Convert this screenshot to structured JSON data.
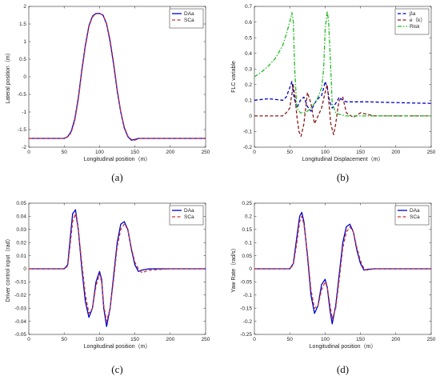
{
  "chart_data": [
    {
      "type": "line",
      "panel_label": "(a)",
      "xlabel": "Longitudinal position（m）",
      "ylabel": "Lateral position（m）",
      "xlim": [
        0,
        250
      ],
      "ylim": [
        -2,
        2
      ],
      "xticks": [
        "0",
        "50",
        "100",
        "150",
        "200",
        "250"
      ],
      "yticks": [
        "-2",
        "-1.5",
        "-1",
        "-0.5",
        "0",
        "0.5",
        "1",
        "1.5",
        "2"
      ],
      "legend_position": "top-right",
      "series": [
        {
          "name": "DAa",
          "color": "#0000cc",
          "dash": "solid",
          "x": [
            0,
            50,
            55,
            60,
            65,
            70,
            75,
            80,
            85,
            90,
            95,
            100,
            105,
            110,
            115,
            120,
            125,
            130,
            135,
            140,
            145,
            150,
            155,
            160,
            170,
            200,
            250
          ],
          "y": [
            -1.75,
            -1.75,
            -1.7,
            -1.55,
            -1.2,
            -0.6,
            0.2,
            0.9,
            1.45,
            1.72,
            1.8,
            1.8,
            1.75,
            1.5,
            1.0,
            0.35,
            -0.4,
            -1.0,
            -1.45,
            -1.7,
            -1.8,
            -1.78,
            -1.75,
            -1.75,
            -1.75,
            -1.75,
            -1.75
          ]
        },
        {
          "name": "SCa",
          "color": "#cc3333",
          "dash": "dashed",
          "x": [
            0,
            50,
            55,
            60,
            65,
            70,
            75,
            80,
            85,
            90,
            95,
            100,
            105,
            110,
            115,
            120,
            125,
            130,
            135,
            140,
            145,
            150,
            155,
            160,
            170,
            200,
            250
          ],
          "y": [
            -1.75,
            -1.75,
            -1.71,
            -1.58,
            -1.25,
            -0.65,
            0.15,
            0.85,
            1.42,
            1.7,
            1.79,
            1.8,
            1.76,
            1.52,
            1.05,
            0.4,
            -0.35,
            -0.98,
            -1.42,
            -1.68,
            -1.78,
            -1.8,
            -1.76,
            -1.75,
            -1.75,
            -1.75,
            -1.75
          ]
        }
      ]
    },
    {
      "type": "line",
      "panel_label": "(b)",
      "xlabel": "Longitudinal Displacement（m）",
      "ylabel": "FLC variable",
      "xlim": [
        0,
        250
      ],
      "ylim": [
        -0.2,
        0.7
      ],
      "xticks": [
        "0",
        "50",
        "100",
        "150",
        "200",
        "250"
      ],
      "yticks": [
        "-0.2",
        "-0.1",
        "0",
        "0.1",
        "0.2",
        "0.3",
        "0.4",
        "0.5",
        "0.6",
        "0.7"
      ],
      "legend_position": "top-right",
      "series": [
        {
          "name": "βa",
          "color": "#0000cc",
          "dash": "dashed",
          "x": [
            0,
            20,
            40,
            45,
            50,
            53,
            56,
            60,
            65,
            70,
            75,
            80,
            85,
            90,
            95,
            98,
            100,
            103,
            106,
            110,
            115,
            120,
            125,
            130,
            140,
            160,
            200,
            250
          ],
          "y": [
            0.1,
            0.11,
            0.1,
            0.12,
            0.18,
            0.22,
            0.12,
            0.05,
            0.1,
            0.12,
            0.06,
            0.03,
            0.08,
            0.11,
            0.13,
            0.18,
            0.22,
            0.18,
            0.1,
            0.05,
            0.08,
            0.12,
            0.1,
            0.09,
            0.09,
            0.09,
            0.085,
            0.08
          ]
        },
        {
          "name": "e（k）",
          "color": "#8b1a1a",
          "dash": "dashed",
          "x": [
            0,
            30,
            40,
            45,
            50,
            55,
            58,
            60,
            63,
            66,
            70,
            75,
            80,
            85,
            90,
            95,
            100,
            103,
            105,
            108,
            112,
            115,
            118,
            120,
            125,
            130,
            140,
            150,
            170,
            250
          ],
          "y": [
            0,
            0,
            0,
            0.02,
            0.05,
            0.2,
            0.1,
            0,
            -0.1,
            -0.13,
            -0.05,
            0.15,
            0.08,
            -0.05,
            0,
            0.05,
            0.15,
            0.2,
            0.1,
            -0.05,
            -0.12,
            -0.05,
            0.05,
            0.1,
            0.12,
            0.02,
            -0.01,
            0.02,
            0,
            0
          ]
        },
        {
          "name": "Risk",
          "color": "#22bb22",
          "dash": "dashdot",
          "x": [
            0,
            10,
            20,
            30,
            40,
            45,
            50,
            53,
            55,
            57,
            60,
            65,
            70,
            75,
            80,
            85,
            90,
            95,
            98,
            100,
            103,
            105,
            108,
            110,
            115,
            120,
            130,
            140,
            150,
            170,
            200,
            250
          ],
          "y": [
            0.25,
            0.28,
            0.32,
            0.37,
            0.45,
            0.52,
            0.6,
            0.66,
            0.6,
            0.3,
            0.05,
            0.02,
            0.02,
            0.03,
            0.05,
            0.08,
            0.12,
            0.18,
            0.3,
            0.55,
            0.67,
            0.6,
            0.3,
            0.08,
            0.02,
            0.01,
            0,
            0,
            0,
            0,
            0,
            0
          ]
        }
      ]
    },
    {
      "type": "line",
      "panel_label": "(c)",
      "xlabel": "Longitudinal position（m）",
      "ylabel": "Driver control input（rad）",
      "xlim": [
        0,
        250
      ],
      "ylim": [
        -0.05,
        0.05
      ],
      "xticks": [
        "0",
        "50",
        "100",
        "150",
        "200",
        "250"
      ],
      "yticks": [
        "-0.05",
        "-0.04",
        "-0.03",
        "-0.02",
        "-0.01",
        "0",
        "0.01",
        "0.02",
        "0.03",
        "0.04",
        "0.05"
      ],
      "legend_position": "top-right",
      "series": [
        {
          "name": "DAa",
          "color": "#0000cc",
          "dash": "solid",
          "x": [
            0,
            50,
            55,
            58,
            62,
            66,
            70,
            75,
            80,
            85,
            90,
            95,
            100,
            103,
            106,
            110,
            115,
            120,
            125,
            130,
            135,
            140,
            145,
            150,
            155,
            160,
            170,
            200,
            250
          ],
          "y": [
            0,
            0,
            0.003,
            0.02,
            0.042,
            0.045,
            0.03,
            0.0,
            -0.025,
            -0.037,
            -0.03,
            -0.01,
            -0.002,
            -0.008,
            -0.03,
            -0.044,
            -0.03,
            -0.005,
            0.02,
            0.034,
            0.036,
            0.03,
            0.015,
            0.003,
            -0.002,
            -0.001,
            0,
            0,
            0
          ]
        },
        {
          "name": "SCa",
          "color": "#cc3333",
          "dash": "dashed",
          "x": [
            0,
            50,
            55,
            58,
            62,
            66,
            70,
            75,
            80,
            85,
            90,
            95,
            100,
            103,
            106,
            110,
            115,
            120,
            125,
            130,
            135,
            140,
            145,
            150,
            155,
            160,
            170,
            200,
            250
          ],
          "y": [
            0,
            0,
            0.002,
            0.016,
            0.036,
            0.042,
            0.03,
            0.004,
            -0.02,
            -0.034,
            -0.03,
            -0.013,
            -0.004,
            -0.01,
            -0.028,
            -0.04,
            -0.03,
            -0.008,
            0.017,
            0.03,
            0.034,
            0.03,
            0.016,
            0.005,
            0.0,
            -0.003,
            -0.001,
            0,
            0
          ]
        }
      ]
    },
    {
      "type": "line",
      "panel_label": "(d)",
      "xlabel": "Longitudinal position（m）",
      "ylabel": "Yaw Rate（rad/s）",
      "xlim": [
        0,
        250
      ],
      "ylim": [
        -0.25,
        0.25
      ],
      "xticks": [
        "0",
        "50",
        "100",
        "150",
        "200",
        "250"
      ],
      "yticks": [
        "-0.25",
        "-0.2",
        "-0.15",
        "-0.1",
        "-0.05",
        "0",
        "0.05",
        "0.1",
        "0.15",
        "0.2",
        "0.25"
      ],
      "legend_position": "top-right",
      "series": [
        {
          "name": "DAa",
          "color": "#0000cc",
          "dash": "solid",
          "x": [
            0,
            50,
            55,
            60,
            64,
            67,
            70,
            75,
            80,
            85,
            90,
            95,
            100,
            103,
            107,
            110,
            115,
            120,
            125,
            130,
            135,
            140,
            145,
            150,
            155,
            160,
            170,
            200,
            250
          ],
          "y": [
            0,
            0,
            0.02,
            0.12,
            0.2,
            0.215,
            0.18,
            0.05,
            -0.1,
            -0.17,
            -0.14,
            -0.06,
            -0.04,
            -0.07,
            -0.16,
            -0.21,
            -0.14,
            -0.02,
            0.1,
            0.16,
            0.17,
            0.14,
            0.07,
            0.02,
            -0.005,
            -0.002,
            0,
            0,
            0
          ]
        },
        {
          "name": "SCa",
          "color": "#cc3333",
          "dash": "dashed",
          "x": [
            0,
            50,
            55,
            60,
            64,
            67,
            70,
            75,
            80,
            85,
            90,
            95,
            100,
            103,
            107,
            110,
            115,
            120,
            125,
            130,
            135,
            140,
            145,
            150,
            155,
            160,
            170,
            200,
            250
          ],
          "y": [
            0,
            0,
            0.015,
            0.1,
            0.18,
            0.2,
            0.17,
            0.06,
            -0.08,
            -0.15,
            -0.14,
            -0.08,
            -0.05,
            -0.07,
            -0.14,
            -0.19,
            -0.15,
            -0.04,
            0.08,
            0.14,
            0.16,
            0.14,
            0.08,
            0.03,
            0.0,
            -0.005,
            0,
            0,
            0
          ]
        }
      ]
    }
  ]
}
